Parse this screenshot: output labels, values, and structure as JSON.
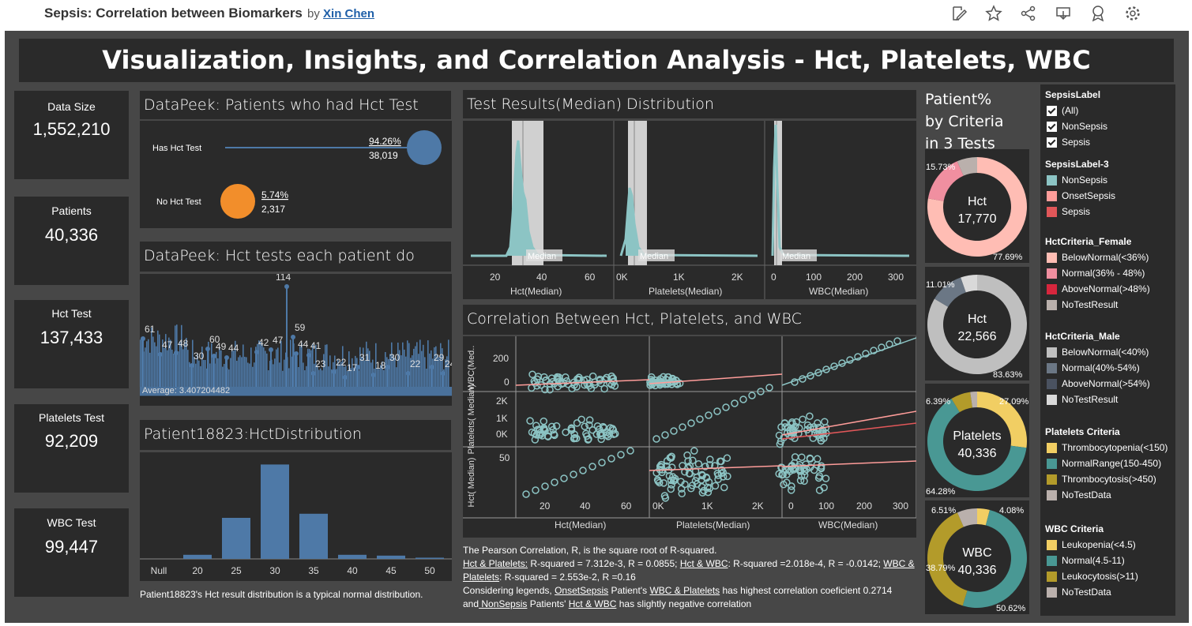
{
  "header": {
    "title": "Sepsis: Correlation between Biomarkers",
    "by": "by",
    "author": "Xin Chen"
  },
  "toolbar": {
    "icons": [
      "edit-icon",
      "star-icon",
      "share-icon",
      "download-icon",
      "badge-icon",
      "gear-icon"
    ]
  },
  "banner": "Visualization, Insights, and Correlation Analysis - Hct, Platelets, WBC",
  "kpis": [
    {
      "label": "Data Size",
      "value": "1,552,210"
    },
    {
      "label": "Patients",
      "value": "40,336"
    },
    {
      "label": "Hct Test",
      "value": "137,433"
    },
    {
      "label": "Platelets Test",
      "value": "92,209"
    },
    {
      "label": "WBC Test",
      "value": "99,447"
    }
  ],
  "datapeek1": {
    "title": "DataPeek: Patients who had Hct Test",
    "rows": [
      {
        "label": "Has Hct Test",
        "pct": "94.26%",
        "count": "38,019",
        "color": "#4e79a7"
      },
      {
        "label": "No Hct Test",
        "pct": "5.74%",
        "count": "2,317",
        "color": "#f28e2b"
      }
    ]
  },
  "datapeek2": {
    "title": "DataPeek: Hct tests each patient do",
    "average_label": "Average: 3.407204482",
    "peak_labels": [
      "61",
      "47",
      "48",
      "30",
      "60",
      "49",
      "44",
      "42",
      "47",
      "114",
      "59",
      "44",
      "41",
      "23",
      "22",
      "17",
      "31",
      "18",
      "30",
      "22",
      "29",
      "24"
    ]
  },
  "patient": {
    "title": "Patient18823:HctDistribution",
    "chart_data": {
      "type": "bar",
      "categories": [
        "Null",
        "20",
        "25",
        "30",
        "35",
        "40",
        "45",
        "50"
      ],
      "values": [
        0,
        1,
        10,
        23,
        11,
        1,
        0.8,
        0.3
      ]
    },
    "caption": "Patient18823's Hct result distribution is a typical normal distribution."
  },
  "distribution": {
    "title": "Test Results(Median) Distribution",
    "panels": [
      {
        "xlabel": "Hct(Median)",
        "ticks": [
          "20",
          "40",
          "60"
        ],
        "median_label": "Median"
      },
      {
        "xlabel": "Platelets(Median)",
        "ticks": [
          "0K",
          "1K",
          "2K"
        ],
        "median_label": "Median"
      },
      {
        "xlabel": "WBC(Median)",
        "ticks": [
          "0",
          "100",
          "200",
          "300"
        ],
        "median_label": "Median"
      }
    ]
  },
  "correlation": {
    "title": "Correlation Between Hct, Platelets, and WBC",
    "row_labels": [
      "WBC(Med..",
      "Platelets(\nMedian)",
      "Hct(\nMedian)"
    ],
    "wbc_ticks": [
      "200",
      "0"
    ],
    "plt_ticks": [
      "2K",
      "1K",
      "0K"
    ],
    "hct_ticks": [
      "50"
    ],
    "col_labels": [
      "Hct(Median)",
      "Platelets(Median)",
      "WBC(Median)"
    ],
    "hct_xticks": [
      "20",
      "40",
      "60"
    ],
    "plt_xticks": [
      "0K",
      "1K",
      "2K"
    ],
    "wbc_xticks": [
      "0",
      "100",
      "200",
      "300"
    ]
  },
  "notes": {
    "line1": "The Pearson Correlation, R, is the square root of R-squared.",
    "hp_label": "Hct & Platelets:",
    "hp_text": " R-squared = 7.312e-3, R = 0.0855; ",
    "hw_label": "Hct & WBC",
    "hw_text": ": R-squared =2.018e-4, R = -0.0142; ",
    "wp_label": "WBC & Platelets",
    "wp_text": ": R-squared = 2.553e-2, R =0.16",
    "l3a": "Considering legends, ",
    "onset": "OnsetSepsis",
    "l3b": " Patient's ",
    "wp2": "WBC & Platelets",
    "l3c": " has highest correlation coeficient 0.2714",
    "l4a": "and",
    "nonsepsis": " NonSepsis",
    "l4b": " Patients' ",
    "hw2": "Hct & WBC",
    "l4c": " has slightly negative correlation"
  },
  "donuts": {
    "title1": "Patient%",
    "title2": "by Criteria",
    "title3": "in 3 Tests",
    "items": [
      {
        "label": "Hct",
        "value": "17,770",
        "pct_a": "15.73%",
        "pct_b": "77.69%",
        "colors": [
          "#ffbdb4",
          "#f08fa0",
          "#bab0ac"
        ],
        "fractions": [
          0.7769,
          0.1573,
          0.0658
        ]
      },
      {
        "label": "Hct",
        "value": "22,566",
        "pct_a": "11.01%",
        "pct_b": "83.63%",
        "colors": [
          "#bfbfbf",
          "#6b7785",
          "#d9d9d9"
        ],
        "fractions": [
          0.8363,
          0.1101,
          0.0536
        ]
      },
      {
        "label": "Platelets",
        "value": "40,336",
        "pct_a": "6.39%",
        "pct_b": "27.09%",
        "pct_c": "64.28%",
        "colors": [
          "#f1ce63",
          "#499894",
          "#b39b2a",
          "#bab0ac"
        ],
        "fractions": [
          0.2709,
          0.6428,
          0.0639,
          0.0224
        ]
      },
      {
        "label": "WBC",
        "value": "40,336",
        "pct_a": "6.51%",
        "pct_b": "4.08%",
        "pct_c": "38.79%",
        "pct_d": "50.62%",
        "colors": [
          "#f1ce63",
          "#499894",
          "#b39b2a",
          "#bab0ac"
        ],
        "fractions": [
          0.0408,
          0.5062,
          0.3879,
          0.0651
        ]
      }
    ]
  },
  "legend": {
    "sepsis_label": {
      "title": "SepsisLabel",
      "items": [
        "(All)",
        "NonSepsis",
        "Sepsis"
      ]
    },
    "sepsis3": {
      "title": "SepsisLabel-3",
      "items": [
        {
          "name": "NonSepsis",
          "color": "#8cc4c4"
        },
        {
          "name": "OnsetSepsis",
          "color": "#ff9d9a"
        },
        {
          "name": "Sepsis",
          "color": "#e15759"
        }
      ]
    },
    "hct_female": {
      "title": "HctCriteria_Female",
      "items": [
        {
          "name": "BelowNormal(<36%)",
          "color": "#ffbdb4"
        },
        {
          "name": "Normal(36% - 48%)",
          "color": "#f08fa0"
        },
        {
          "name": "AboveNormal(>48%)",
          "color": "#d7263d"
        },
        {
          "name": "NoTestResult",
          "color": "#bab0ac"
        }
      ]
    },
    "hct_male": {
      "title": "HctCriteria_Male",
      "items": [
        {
          "name": "BelowNormal(<40%)",
          "color": "#bfbfbf"
        },
        {
          "name": "Normal(40%-54%)",
          "color": "#6b7785"
        },
        {
          "name": "AboveNormal(>54%)",
          "color": "#4a5260"
        },
        {
          "name": "NoTestResult",
          "color": "#d9d9d9"
        }
      ]
    },
    "platelets": {
      "title": "Platelets Criteria",
      "items": [
        {
          "name": "Thrombocytopenia(<150)",
          "color": "#f1ce63"
        },
        {
          "name": "NormalRange(150-450)",
          "color": "#499894"
        },
        {
          "name": "Thrombocytosis(>450)",
          "color": "#b39b2a"
        },
        {
          "name": "NoTestData",
          "color": "#bab0ac"
        }
      ]
    },
    "wbc": {
      "title": "WBC Criteria",
      "items": [
        {
          "name": "Leukopenia(<4.5)",
          "color": "#f1ce63"
        },
        {
          "name": "Normal(4.5-11)",
          "color": "#499894"
        },
        {
          "name": "Leukocytosis(>11)",
          "color": "#b39b2a"
        },
        {
          "name": "NoTestData",
          "color": "#bab0ac"
        }
      ]
    }
  }
}
